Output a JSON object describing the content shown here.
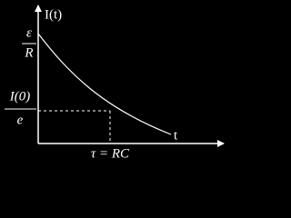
{
  "axes": {
    "y_label": "I(t)",
    "x_label": "t"
  },
  "labels": {
    "initial_numerator": "ε",
    "initial_denominator": "R",
    "decay_numerator": "I(0)",
    "decay_denominator": "e",
    "time_constant": "τ = RC"
  }
}
